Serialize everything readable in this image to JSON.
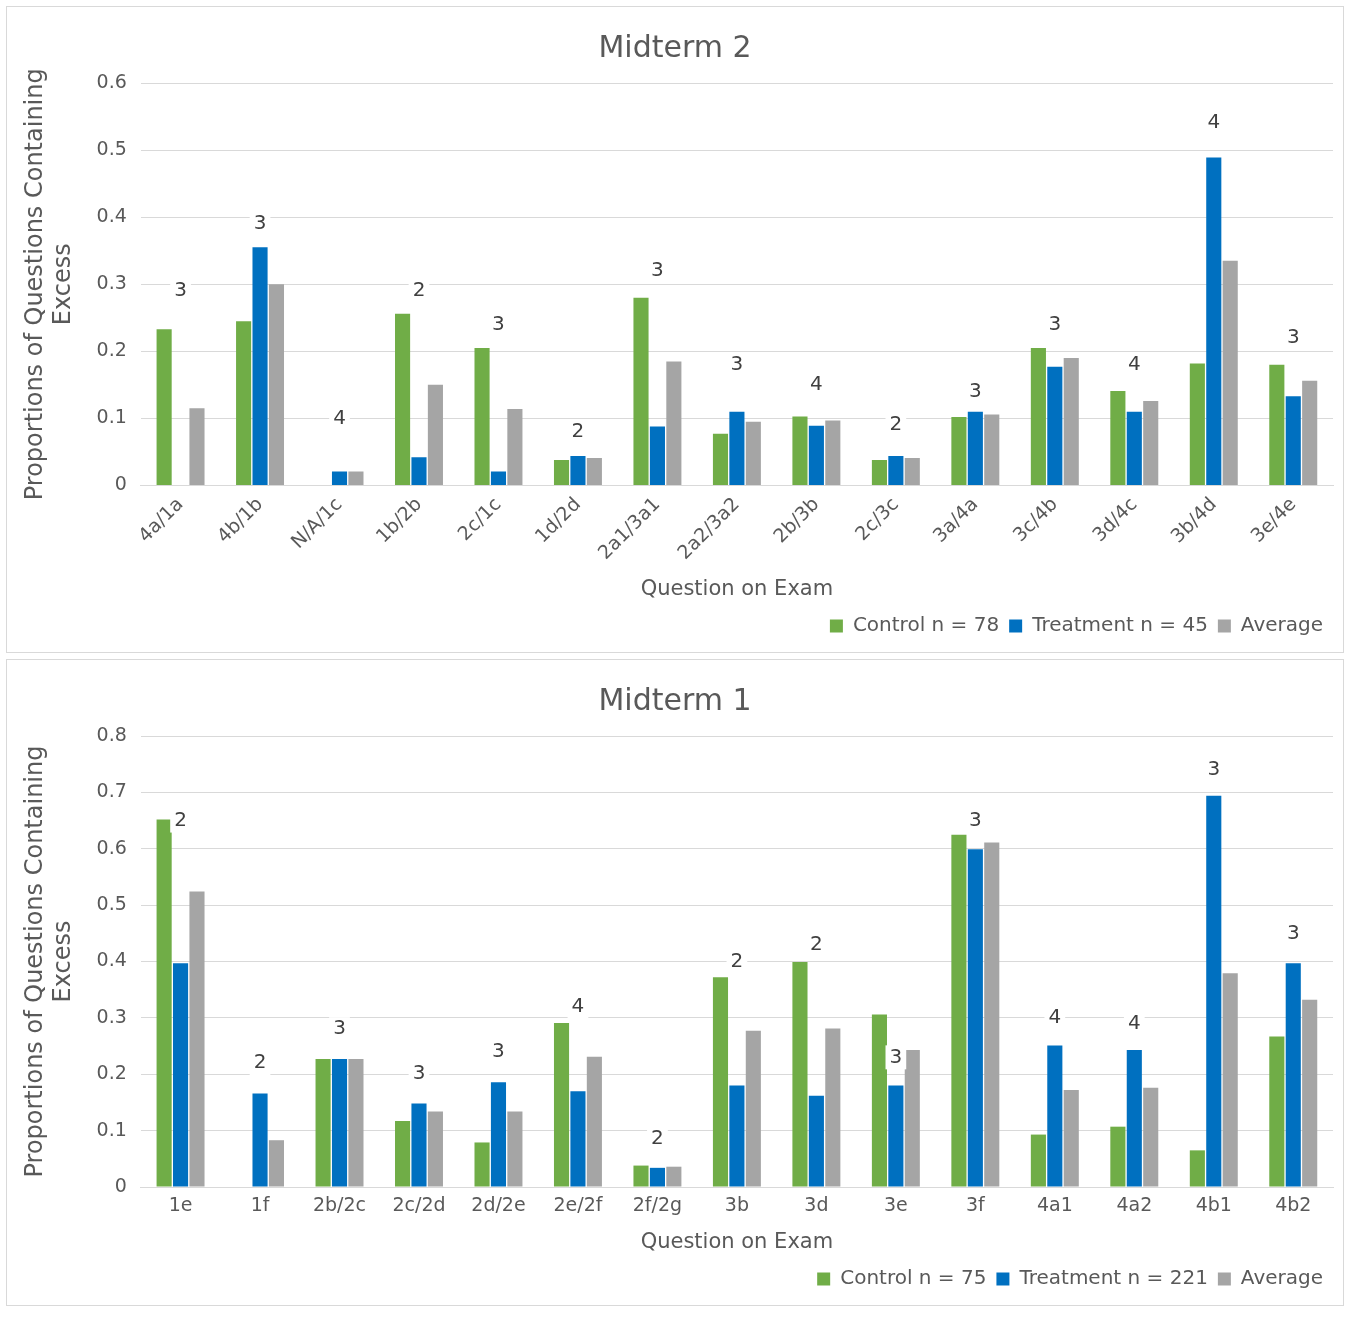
{
  "chart_data": [
    {
      "type": "bar",
      "title": "Midterm 2",
      "xlabel": "Question on Exam",
      "ylabel": "Proportions of Questions Containing Excess",
      "categories": [
        "4a/1a",
        "4b/1b",
        "N/A/1c",
        "1b/2b",
        "2c/1c",
        "1d/2d",
        "2a1/3a1",
        "2a2/3a2",
        "2b/3b",
        "2c/3c",
        "3a/4a",
        "3c/4b",
        "3d/4c",
        "3b/4d",
        "3e/4e"
      ],
      "series": [
        {
          "name": "Control n = 78",
          "color": "#70ad47",
          "values": [
            0.233,
            0.245,
            null,
            0.256,
            0.205,
            0.038,
            0.28,
            0.077,
            0.103,
            0.038,
            0.102,
            0.205,
            0.141,
            0.182,
            0.18
          ]
        },
        {
          "name": "Treatment n = 45",
          "color": "#0070c0",
          "values": [
            null,
            0.355,
            0.021,
            0.042,
            0.021,
            0.044,
            0.088,
            0.11,
            0.089,
            0.044,
            0.11,
            0.177,
            0.11,
            0.489,
            0.133
          ]
        },
        {
          "name": "Average",
          "color": "#a5a5a5",
          "values": [
            0.115,
            0.3,
            0.021,
            0.15,
            0.114,
            0.041,
            0.185,
            0.095,
            0.097,
            0.041,
            0.106,
            0.19,
            0.126,
            0.335,
            0.156
          ]
        }
      ],
      "ylim": [
        0,
        0.6
      ],
      "yticks": [
        0,
        0.1,
        0.2,
        0.3,
        0.4,
        0.5,
        0.6
      ],
      "grid": "y",
      "legend": "bottom right",
      "annotations": [
        {
          "text": "3",
          "x": "4a/1a",
          "y": 0.29
        },
        {
          "text": "3",
          "x": "4b/1b",
          "y": 0.39
        },
        {
          "text": "4",
          "x": "N/A/1c",
          "y": 0.1
        },
        {
          "text": "2",
          "x": "1b/2b",
          "y": 0.29
        },
        {
          "text": "3",
          "x": "2c/1c",
          "y": 0.24
        },
        {
          "text": "2",
          "x": "1d/2d",
          "y": 0.08
        },
        {
          "text": "3",
          "x": "2a1/3a1",
          "y": 0.32
        },
        {
          "text": "3",
          "x": "2a2/3a2",
          "y": 0.18
        },
        {
          "text": "4",
          "x": "2b/3b",
          "y": 0.15
        },
        {
          "text": "2",
          "x": "2c/3c",
          "y": 0.09
        },
        {
          "text": "3",
          "x": "3a/4a",
          "y": 0.14
        },
        {
          "text": "3",
          "x": "3c/4b",
          "y": 0.24
        },
        {
          "text": "4",
          "x": "3d/4c",
          "y": 0.18
        },
        {
          "text": "4",
          "x": "3b/4d",
          "y": 0.54
        },
        {
          "text": "3",
          "x": "3e/4e",
          "y": 0.22
        }
      ]
    },
    {
      "type": "bar",
      "title": "Midterm 1",
      "xlabel": "Question on Exam",
      "ylabel": "Proportions of Questions Containing Excess",
      "categories": [
        "1e",
        "1f",
        "2b/2c",
        "2c/2d",
        "2d/2e",
        "2e/2f",
        "2f/2g",
        "3b",
        "3d",
        "3e",
        "3f",
        "4a1",
        "4a2",
        "4b1",
        "4b2"
      ],
      "series": [
        {
          "name": "Control n = 75",
          "color": "#70ad47",
          "values": [
            0.652,
            null,
            0.227,
            0.117,
            0.079,
            0.291,
            0.038,
            0.372,
            0.399,
            0.306,
            0.625,
            0.093,
            0.107,
            0.065,
            0.267
          ]
        },
        {
          "name": "Treatment n = 221",
          "color": "#0070c0",
          "values": [
            0.397,
            0.166,
            0.227,
            0.148,
            0.186,
            0.17,
            0.034,
            0.18,
            0.162,
            0.18,
            0.599,
            0.251,
            0.243,
            0.694,
            0.397
          ]
        },
        {
          "name": "Average",
          "color": "#a5a5a5",
          "values": [
            0.524,
            0.083,
            0.227,
            0.134,
            0.134,
            0.231,
            0.036,
            0.277,
            0.281,
            0.243,
            0.611,
            0.172,
            0.176,
            0.379,
            0.332
          ]
        }
      ],
      "ylim": [
        0,
        0.8
      ],
      "yticks": [
        0,
        0.1,
        0.2,
        0.3,
        0.4,
        0.5,
        0.6,
        0.7,
        0.8
      ],
      "grid": "y",
      "legend": "bottom right",
      "annotations": [
        {
          "text": "2",
          "x": "1e",
          "y": 0.65
        },
        {
          "text": "2",
          "x": "1f",
          "y": 0.22
        },
        {
          "text": "3",
          "x": "2b/2c",
          "y": 0.28
        },
        {
          "text": "3",
          "x": "2c/2d",
          "y": 0.2
        },
        {
          "text": "3",
          "x": "2d/2e",
          "y": 0.24
        },
        {
          "text": "4",
          "x": "2e/2f",
          "y": 0.32
        },
        {
          "text": "2",
          "x": "2f/2g",
          "y": 0.085
        },
        {
          "text": "2",
          "x": "3b",
          "y": 0.4
        },
        {
          "text": "2",
          "x": "3d",
          "y": 0.43
        },
        {
          "text": "3",
          "x": "3e",
          "y": 0.23
        },
        {
          "text": "3",
          "x": "3f",
          "y": 0.65
        },
        {
          "text": "4",
          "x": "4a1",
          "y": 0.3
        },
        {
          "text": "4",
          "x": "4a2",
          "y": 0.29
        },
        {
          "text": "3",
          "x": "4b1",
          "y": 0.74
        },
        {
          "text": "3",
          "x": "4b2",
          "y": 0.45
        }
      ]
    }
  ]
}
